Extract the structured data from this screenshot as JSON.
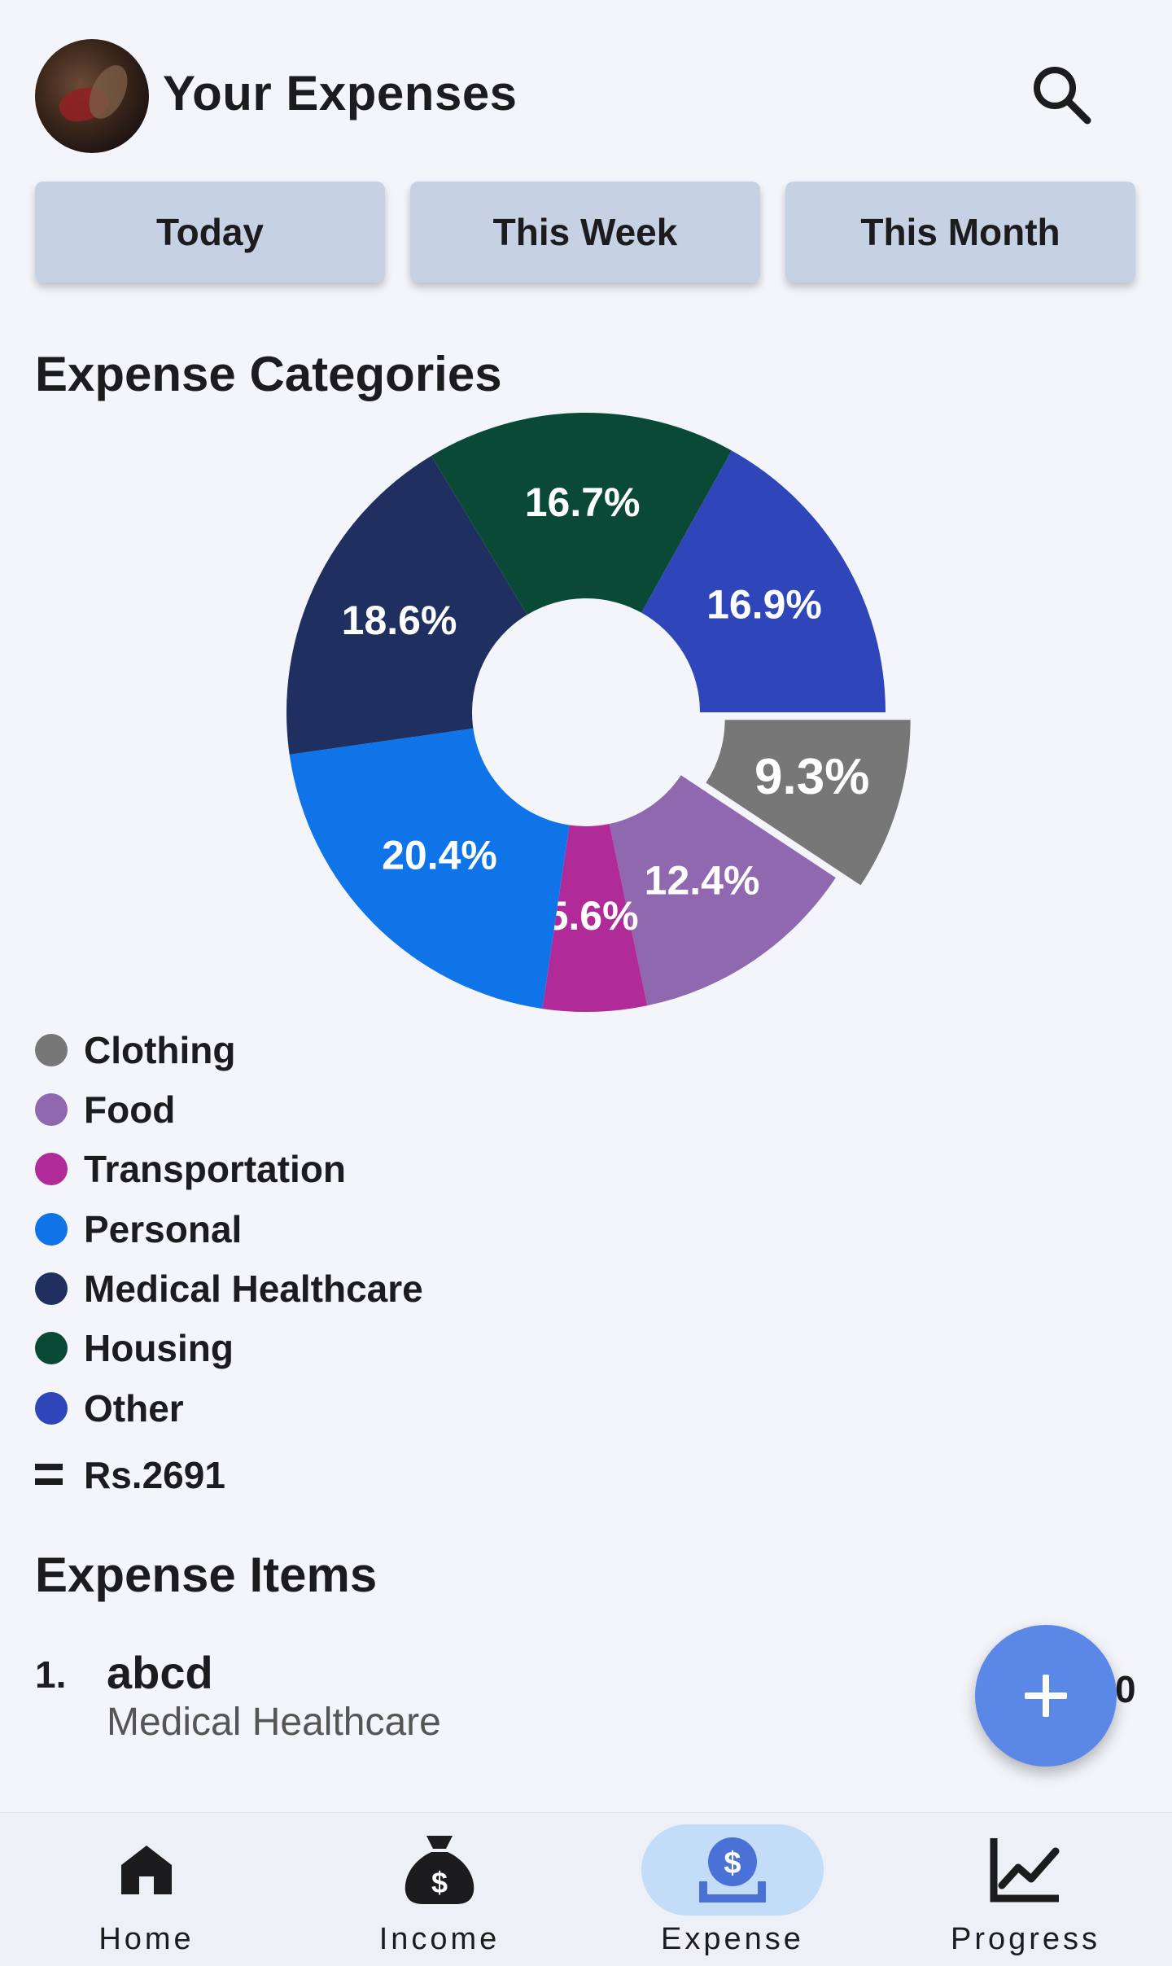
{
  "header": {
    "title": "Your Expenses",
    "avatar_icon": "profile-avatar",
    "search_icon": "search-icon"
  },
  "period_buttons": [
    "Today",
    "This Week",
    "This Month"
  ],
  "categories_section": {
    "title": "Expense Categories"
  },
  "chart_data": {
    "type": "pie",
    "style": "donut",
    "slices": [
      {
        "label": "Clothing",
        "value": 9.3,
        "display": "9.3%",
        "color": "#777777",
        "exploded": true
      },
      {
        "label": "Food",
        "value": 12.4,
        "display": "12.4%",
        "color": "#8f68b0"
      },
      {
        "label": "Transportation",
        "value": 5.6,
        "display": "5.6%",
        "color": "#b02a98"
      },
      {
        "label": "Personal",
        "value": 20.4,
        "display": "20.4%",
        "color": "#0e74e8"
      },
      {
        "label": "Medical Healthcare",
        "value": 18.6,
        "display": "18.6%",
        "color": "#1f3060"
      },
      {
        "label": "Housing",
        "value": 16.7,
        "display": "16.7%",
        "color": "#0a4935"
      },
      {
        "label": "Other",
        "value": 16.9,
        "display": "16.9%",
        "color": "#2e46b9"
      }
    ]
  },
  "legend": [
    {
      "label": "Clothing",
      "color": "#777777"
    },
    {
      "label": "Food",
      "color": "#8f68b0"
    },
    {
      "label": "Transportation",
      "color": "#b02a98"
    },
    {
      "label": "Personal",
      "color": "#0e74e8"
    },
    {
      "label": "Medical Healthcare",
      "color": "#1f3060"
    },
    {
      "label": "Housing",
      "color": "#0a4935"
    },
    {
      "label": "Other",
      "color": "#2e46b9"
    }
  ],
  "total": {
    "icon": "equals-icon",
    "value": "Rs.2691"
  },
  "items_section": {
    "title": "Expense Items",
    "items": [
      {
        "index": "1.",
        "name": "abcd",
        "category": "Medical Healthcare",
        "amount": "0"
      }
    ]
  },
  "fab": {
    "icon": "plus-icon",
    "color": "#5b87e6"
  },
  "bottom_nav": [
    {
      "label": "Home",
      "icon": "home-icon",
      "active": false
    },
    {
      "label": "Income",
      "icon": "money-bag-icon",
      "active": false
    },
    {
      "label": "Expense",
      "icon": "dollar-savings-icon",
      "active": true
    },
    {
      "label": "Progress",
      "icon": "trending-chart-icon",
      "active": false
    }
  ]
}
